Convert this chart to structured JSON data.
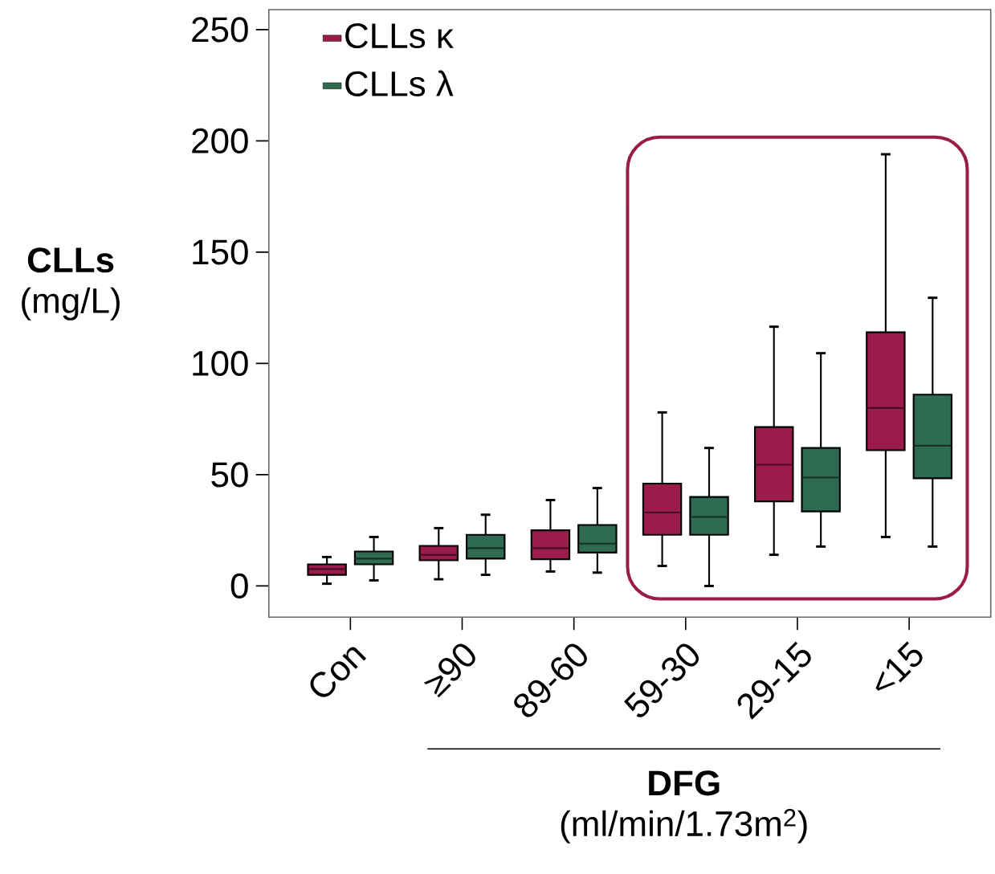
{
  "chart_data": {
    "type": "box",
    "xlabel": "**DFG** (ml/min/1.73m$^{2}$)",
    "ylabel": "**CLLs** (mg/L)",
    "categories": [
      "Con",
      "≥90",
      "89-60",
      "59-30",
      "29-15",
      "<15"
    ],
    "ylim": [
      -14,
      259
    ],
    "yticks": [
      0,
      50,
      100,
      150,
      200,
      250
    ],
    "legend": "top left",
    "series": [
      {
        "name": "CLLs κ",
        "color": "#9b1b4a",
        "boxes": [
          {
            "low": 1,
            "q1": 5,
            "median": 7.6,
            "q3": 9.7,
            "high": 13
          },
          {
            "low": 3,
            "q1": 11.5,
            "median": 14,
            "q3": 18,
            "high": 26
          },
          {
            "low": 6.5,
            "q1": 12,
            "median": 17,
            "q3": 25,
            "high": 38.6
          },
          {
            "low": 9,
            "q1": 23,
            "median": 33,
            "q3": 46,
            "high": 78
          },
          {
            "low": 14,
            "q1": 38,
            "median": 54.5,
            "q3": 71.4,
            "high": 116.5
          },
          {
            "low": 22,
            "q1": 61,
            "median": 80,
            "q3": 114,
            "high": 194
          }
        ]
      },
      {
        "name": "CLLs λ",
        "color": "#2e6b52",
        "boxes": [
          {
            "low": 2.5,
            "q1": 9.7,
            "median": 12.3,
            "q3": 15.5,
            "high": 22
          },
          {
            "low": 5,
            "q1": 12.3,
            "median": 17,
            "q3": 23,
            "high": 32
          },
          {
            "low": 6,
            "q1": 15,
            "median": 19,
            "q3": 27.4,
            "high": 44
          },
          {
            "low": 0,
            "q1": 23,
            "median": 31,
            "q3": 40,
            "high": 62
          },
          {
            "low": 17.7,
            "q1": 33.5,
            "median": 48.7,
            "q3": 62,
            "high": 104.6
          },
          {
            "low": 17.7,
            "q1": 48.4,
            "median": 63,
            "q3": 86,
            "high": 129.5
          }
        ]
      }
    ]
  }
}
